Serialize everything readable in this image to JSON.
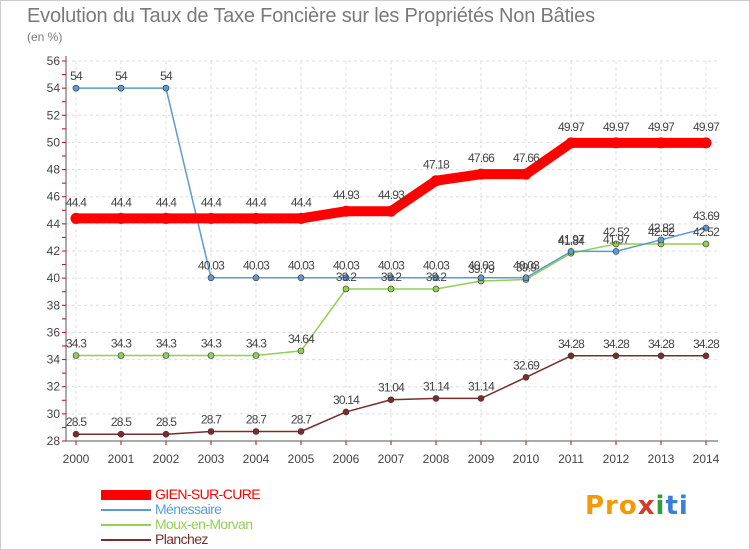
{
  "header": {
    "title": "Evolution du Taux de Taxe Foncière sur les Propriétés Non Bâties",
    "subtitle": "(en %)"
  },
  "logo": {
    "parts": [
      "Pro",
      "x",
      "i",
      "ti"
    ]
  },
  "chart_data": {
    "type": "line",
    "title": "Evolution du Taux de Taxe Foncière sur les Propriétés Non Bâties",
    "ylabel": "(en %)",
    "xlabel": "",
    "x": [
      "2000",
      "2001",
      "2002",
      "2003",
      "2004",
      "2005",
      "2006",
      "2007",
      "2008",
      "2009",
      "2010",
      "2011",
      "2012",
      "2013",
      "2014"
    ],
    "ylim": [
      28,
      56
    ],
    "yticks": [
      28,
      30,
      32,
      34,
      36,
      38,
      40,
      42,
      44,
      46,
      48,
      50,
      52,
      54,
      56
    ],
    "grid": true,
    "legend": "bottom-left",
    "series": [
      {
        "name": "GIEN-SUR-CURE",
        "color": "#ff0000",
        "values": [
          44.4,
          44.4,
          44.4,
          44.4,
          44.4,
          44.4,
          44.93,
          44.93,
          47.18,
          47.66,
          47.66,
          49.97,
          49.97,
          49.97,
          49.97
        ],
        "labels": [
          "44.4",
          "44.4",
          "44.4",
          "44.4",
          "44.4",
          "44.4",
          "44.93",
          "44.93",
          "47.18",
          "47.66",
          "47.66",
          "49.97",
          "49.97",
          "49.97",
          "49.97"
        ]
      },
      {
        "name": "Ménessaire",
        "color": "#5b9bd5",
        "values": [
          54,
          54,
          54,
          40.03,
          40.03,
          40.03,
          40.03,
          40.03,
          40.03,
          40.03,
          40.03,
          41.97,
          41.97,
          42.82,
          43.69
        ],
        "labels": [
          "54",
          "54",
          "54",
          "40.03",
          "40.03",
          "40.03",
          "40.03",
          "40.03",
          "40.03",
          "40.03",
          "40.03",
          "41.97",
          "41.97",
          "42.82",
          "43.69"
        ]
      },
      {
        "name": "Moux-en-Morvan",
        "color": "#92d050",
        "values": [
          34.3,
          34.3,
          34.3,
          34.3,
          34.3,
          34.64,
          39.2,
          39.2,
          39.2,
          39.79,
          39.9,
          41.84,
          42.52,
          42.52,
          42.52
        ],
        "labels": [
          "34.3",
          "34.3",
          "34.3",
          "34.3",
          "34.3",
          "34.64",
          "39.2",
          "39.2",
          "39.2",
          "39.79",
          "39.9",
          "41.84",
          "42.52",
          "42.52",
          "42.52"
        ]
      },
      {
        "name": "Planchez",
        "color": "#7b2c2c",
        "values": [
          28.5,
          28.5,
          28.5,
          28.7,
          28.7,
          28.7,
          30.14,
          31.04,
          31.14,
          31.14,
          32.69,
          34.28,
          34.28,
          34.28,
          34.28
        ],
        "labels": [
          "28.5",
          "28.5",
          "28.5",
          "28.7",
          "28.7",
          "28.7",
          "30.14",
          "31.04",
          "31.14",
          "31.14",
          "32.69",
          "34.28",
          "34.28",
          "34.28",
          "34.28"
        ]
      }
    ]
  }
}
